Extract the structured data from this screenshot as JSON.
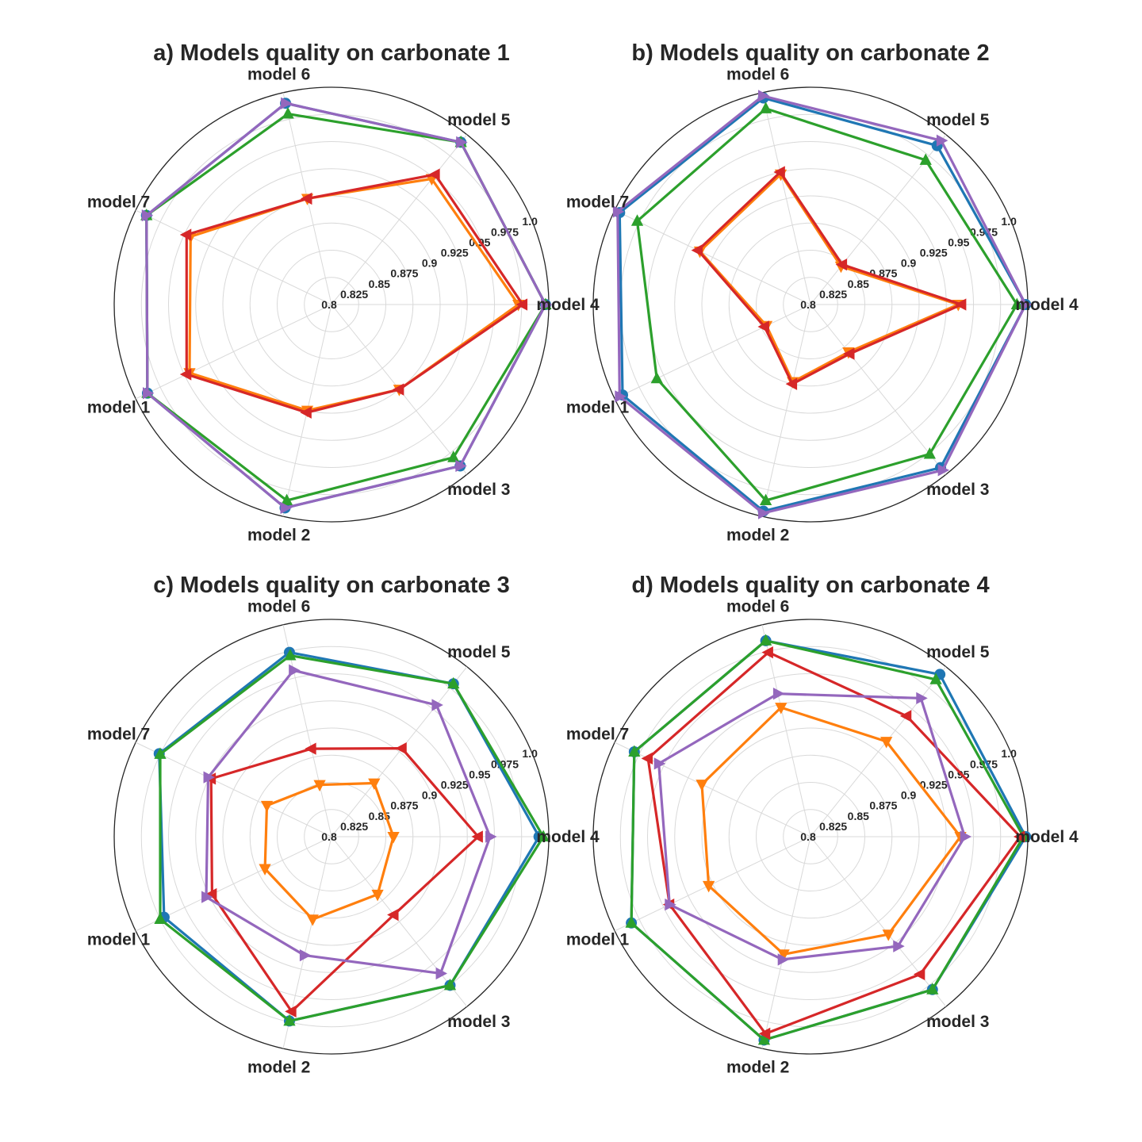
{
  "chart_data": [
    {
      "type": "radar",
      "title": "a) Models quality on carbonate 1",
      "axes": [
        "model 4",
        "model 5",
        "model 6",
        "model 7",
        "model 1",
        "model 2",
        "model 3"
      ],
      "rlim": [
        0.8,
        1.0
      ],
      "rticks": [
        "0.8",
        "0.825",
        "0.85",
        "0.875",
        "0.9",
        "0.925",
        "0.95",
        "0.975",
        "1.0"
      ],
      "grid": true,
      "series": [
        {
          "color": "#1f77b4",
          "marker": "circle",
          "values": {
            "model 4": 0.997,
            "model 5": 0.991,
            "model 6": 0.99,
            "model 7": 0.989,
            "model 1": 0.988,
            "model 2": 0.992,
            "model 3": 0.99
          }
        },
        {
          "color": "#ff7f0e",
          "marker": "triangle-down",
          "values": {
            "model 4": 0.972,
            "model 5": 0.948,
            "model 6": 0.9,
            "model 7": 0.944,
            "model 1": 0.945,
            "model 2": 0.9,
            "model 3": 0.9
          }
        },
        {
          "color": "#2ca02c",
          "marker": "triangle-up",
          "values": {
            "model 4": 0.997,
            "model 5": 0.991,
            "model 6": 0.98,
            "model 7": 0.989,
            "model 1": 0.988,
            "model 2": 0.985,
            "model 3": 0.98
          }
        },
        {
          "color": "#d62728",
          "marker": "triangle-left",
          "values": {
            "model 4": 0.976,
            "model 5": 0.953,
            "model 6": 0.9,
            "model 7": 0.948,
            "model 1": 0.948,
            "model 2": 0.902,
            "model 3": 0.9
          }
        },
        {
          "color": "#9467bd",
          "marker": "triangle-right",
          "values": {
            "model 4": 0.997,
            "model 5": 0.991,
            "model 6": 0.99,
            "model 7": 0.989,
            "model 1": 0.988,
            "model 2": 0.992,
            "model 3": 0.99
          }
        }
      ]
    },
    {
      "type": "radar",
      "title": "b) Models quality on carbonate 2",
      "axes": [
        "model 4",
        "model 5",
        "model 6",
        "model 7",
        "model 1",
        "model 2",
        "model 3"
      ],
      "rlim": [
        0.8,
        1.0
      ],
      "rticks": [
        "0.8",
        "0.825",
        "0.85",
        "0.875",
        "0.9",
        "0.925",
        "0.95",
        "0.975",
        "1.0"
      ],
      "grid": true,
      "series": [
        {
          "color": "#1f77b4",
          "marker": "circle",
          "values": {
            "model 4": 0.998,
            "model 5": 0.987,
            "model 6": 0.995,
            "model 7": 0.995,
            "model 1": 0.992,
            "model 2": 0.995,
            "model 3": 0.992
          }
        },
        {
          "color": "#ff7f0e",
          "marker": "triangle-down",
          "values": {
            "model 4": 0.936,
            "model 5": 0.845,
            "model 6": 0.923,
            "model 7": 0.913,
            "model 1": 0.845,
            "model 2": 0.873,
            "model 3": 0.856
          }
        },
        {
          "color": "#2ca02c",
          "marker": "triangle-up",
          "values": {
            "model 4": 0.99,
            "model 5": 0.97,
            "model 6": 0.985,
            "model 7": 0.977,
            "model 1": 0.957,
            "model 2": 0.985,
            "model 3": 0.976
          }
        },
        {
          "color": "#d62728",
          "marker": "triangle-left",
          "values": {
            "model 4": 0.939,
            "model 5": 0.847,
            "model 6": 0.925,
            "model 7": 0.915,
            "model 1": 0.847,
            "model 2": 0.875,
            "model 3": 0.858
          }
        },
        {
          "color": "#9467bd",
          "marker": "triangle-right",
          "values": {
            "model 4": 0.998,
            "model 5": 0.993,
            "model 6": 0.997,
            "model 7": 0.997,
            "model 1": 0.995,
            "model 2": 0.997,
            "model 3": 0.995
          }
        }
      ]
    },
    {
      "type": "radar",
      "title": "c) Models quality on carbonate 3",
      "axes": [
        "model 4",
        "model 5",
        "model 6",
        "model 7",
        "model 1",
        "model 2",
        "model 3"
      ],
      "rlim": [
        0.8,
        1.0
      ],
      "rticks": [
        "0.8",
        "0.825",
        "0.85",
        "0.875",
        "0.9",
        "0.925",
        "0.95",
        "0.975",
        "1.0"
      ],
      "grid": true,
      "series": [
        {
          "color": "#1f77b4",
          "marker": "circle",
          "values": {
            "model 4": 0.991,
            "model 5": 0.98,
            "model 6": 0.974,
            "model 7": 0.976,
            "model 1": 0.971,
            "model 2": 0.974,
            "model 3": 0.975
          }
        },
        {
          "color": "#ff7f0e",
          "marker": "triangle-down",
          "values": {
            "model 4": 0.857,
            "model 5": 0.863,
            "model 6": 0.849,
            "model 7": 0.866,
            "model 1": 0.868,
            "model 2": 0.878,
            "model 3": 0.868
          }
        },
        {
          "color": "#2ca02c",
          "marker": "triangle-up",
          "values": {
            "model 4": 0.995,
            "model 5": 0.98,
            "model 6": 0.971,
            "model 7": 0.975,
            "model 1": 0.975,
            "model 2": 0.974,
            "model 3": 0.975
          }
        },
        {
          "color": "#d62728",
          "marker": "triangle-left",
          "values": {
            "model 4": 0.935,
            "model 5": 0.904,
            "model 6": 0.883,
            "model 7": 0.923,
            "model 1": 0.922,
            "model 2": 0.965,
            "model 3": 0.892
          }
        },
        {
          "color": "#9467bd",
          "marker": "triangle-right",
          "values": {
            "model 4": 0.946,
            "model 5": 0.955,
            "model 6": 0.957,
            "model 7": 0.926,
            "model 1": 0.928,
            "model 2": 0.912,
            "model 3": 0.961
          }
        }
      ]
    },
    {
      "type": "radar",
      "title": "d) Models quality on carbonate 4",
      "axes": [
        "model 4",
        "model 5",
        "model 6",
        "model 7",
        "model 1",
        "model 2",
        "model 3"
      ],
      "rlim": [
        0.8,
        1.0
      ],
      "rticks": [
        "0.8",
        "0.825",
        "0.85",
        "0.875",
        "0.9",
        "0.925",
        "0.95",
        "0.975",
        "1.0"
      ],
      "grid": true,
      "series": [
        {
          "color": "#1f77b4",
          "marker": "circle",
          "values": {
            "model 4": 0.998,
            "model 5": 0.991,
            "model 6": 0.985,
            "model 7": 0.98,
            "model 1": 0.983,
            "model 2": 0.992,
            "model 3": 0.98
          }
        },
        {
          "color": "#ff7f0e",
          "marker": "triangle-down",
          "values": {
            "model 4": 0.938,
            "model 5": 0.912,
            "model 6": 0.922,
            "model 7": 0.911,
            "model 1": 0.904,
            "model 2": 0.911,
            "model 3": 0.915
          }
        },
        {
          "color": "#2ca02c",
          "marker": "triangle-up",
          "values": {
            "model 4": 0.996,
            "model 5": 0.985,
            "model 6": 0.985,
            "model 7": 0.98,
            "model 1": 0.983,
            "model 2": 0.992,
            "model 3": 0.98
          }
        },
        {
          "color": "#d62728",
          "marker": "triangle-left",
          "values": {
            "model 4": 0.993,
            "model 5": 0.942,
            "model 6": 0.974,
            "model 7": 0.966,
            "model 1": 0.944,
            "model 2": 0.986,
            "model 3": 0.962
          }
        },
        {
          "color": "#9467bd",
          "marker": "triangle-right",
          "values": {
            "model 4": 0.942,
            "model 5": 0.963,
            "model 6": 0.935,
            "model 7": 0.955,
            "model 1": 0.944,
            "model 2": 0.916,
            "model 3": 0.929
          }
        }
      ]
    }
  ]
}
